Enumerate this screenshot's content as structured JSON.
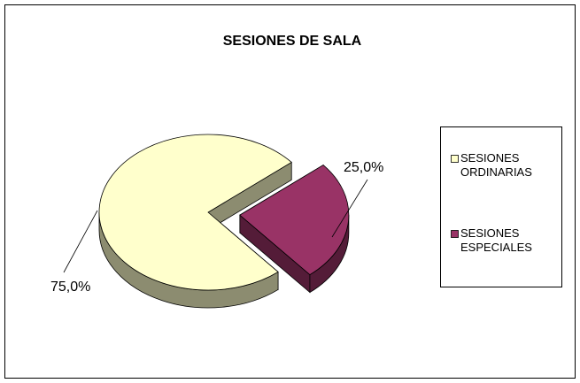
{
  "chart_data": {
    "type": "pie",
    "title": "SESIONES DE SALA",
    "categories": [
      "SESIONES ORDINARIAS",
      "SESIONES ESPECIALES"
    ],
    "values": [
      75,
      25
    ],
    "value_labels": [
      "75,0%",
      "25,0%"
    ],
    "colors": [
      "#FFFFCC",
      "#993366"
    ],
    "legend": "right"
  }
}
